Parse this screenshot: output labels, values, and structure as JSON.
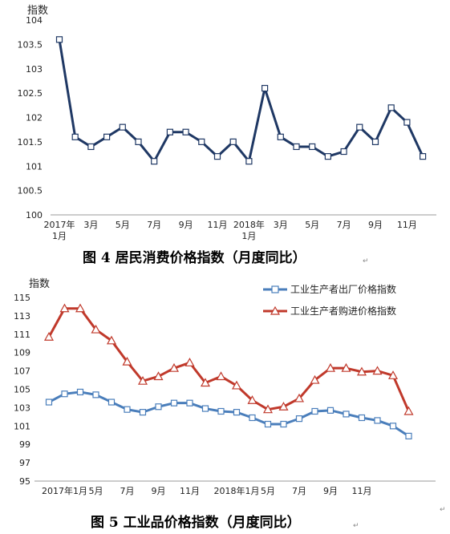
{
  "chart_data": [
    {
      "type": "line",
      "ylabel": "指数",
      "ylim": [
        100,
        104
      ],
      "yticks": [
        100,
        100.5,
        101,
        101.5,
        102,
        102.5,
        103,
        103.5,
        104
      ],
      "x_tick_labels": [
        {
          "i": 0,
          "l1": "2017年",
          "l2": "1月"
        },
        {
          "i": 2,
          "l1": "3月",
          "l2": ""
        },
        {
          "i": 4,
          "l1": "5月",
          "l2": ""
        },
        {
          "i": 6,
          "l1": "7月",
          "l2": ""
        },
        {
          "i": 8,
          "l1": "9月",
          "l2": ""
        },
        {
          "i": 10,
          "l1": "11月",
          "l2": ""
        },
        {
          "i": 12,
          "l1": "2018年",
          "l2": "1月"
        },
        {
          "i": 14,
          "l1": "3月",
          "l2": ""
        },
        {
          "i": 16,
          "l1": "5月",
          "l2": ""
        },
        {
          "i": 18,
          "l1": "7月",
          "l2": ""
        },
        {
          "i": 20,
          "l1": "9月",
          "l2": ""
        },
        {
          "i": 22,
          "l1": "11月",
          "l2": ""
        }
      ],
      "series": [
        {
          "color": "#1f3864",
          "values": [
            103.6,
            101.6,
            101.4,
            101.6,
            101.8,
            101.5,
            101.1,
            101.7,
            101.7,
            101.5,
            101.2,
            101.5,
            101.1,
            102.6,
            101.6,
            101.4,
            101.4,
            101.2,
            101.3,
            101.8,
            101.5,
            102.2,
            101.9,
            101.2
          ]
        }
      ],
      "caption": "图 4    居民消费价格指数（月度同比）"
    },
    {
      "type": "line",
      "ylabel": "指数",
      "ylim": [
        95,
        115
      ],
      "yticks": [
        95,
        97,
        99,
        101,
        103,
        105,
        107,
        109,
        111,
        113,
        115
      ],
      "x_tick_labels": [
        {
          "i": 1,
          "l1": "2017年1月",
          "l2": ""
        },
        {
          "i": 3,
          "l1": "5月",
          "l2": ""
        },
        {
          "i": 5,
          "l1": "7月",
          "l2": ""
        },
        {
          "i": 7,
          "l1": "9月",
          "l2": ""
        },
        {
          "i": 9,
          "l1": "11月",
          "l2": ""
        },
        {
          "i": 12,
          "l1": "2018年1月",
          "l2": ""
        },
        {
          "i": 14,
          "l1": "5月",
          "l2": ""
        },
        {
          "i": 16,
          "l1": "7月",
          "l2": ""
        },
        {
          "i": 18,
          "l1": "9月",
          "l2": ""
        },
        {
          "i": 20,
          "l1": "11月",
          "l2": ""
        }
      ],
      "series": [
        {
          "name": "工业生产者出厂价格指数",
          "color": "#4a7ebb",
          "marker": "square",
          "values": [
            103.6,
            104.5,
            104.7,
            104.4,
            103.6,
            102.8,
            102.5,
            103.1,
            103.5,
            103.5,
            102.9,
            102.6,
            102.5,
            101.9,
            101.2,
            101.2,
            101.8,
            102.6,
            102.7,
            102.3,
            101.9,
            101.6,
            101.0,
            99.9
          ]
        },
        {
          "name": "工业生产者购进价格指数",
          "color": "#c0392b",
          "marker": "triangle",
          "values": [
            110.7,
            113.8,
            113.8,
            111.5,
            110.3,
            108.0,
            105.9,
            106.4,
            107.3,
            107.9,
            105.7,
            106.4,
            105.4,
            103.8,
            102.8,
            103.1,
            104.0,
            106.0,
            107.3,
            107.3,
            106.9,
            107.0,
            106.5,
            102.6
          ]
        }
      ],
      "caption": "图 5    工业品价格指数（月度同比）"
    }
  ]
}
